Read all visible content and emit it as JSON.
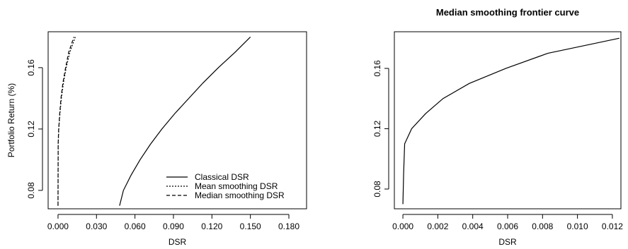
{
  "chart_data": [
    {
      "type": "line",
      "x_label": "DSR",
      "y_label": "Portfolio Return (%)",
      "legend": "bottomright",
      "xlim": [
        -0.0077,
        0.1938
      ],
      "ylim": [
        0.068,
        0.1834
      ],
      "xticks": [
        {
          "value": 0,
          "label": "0.000"
        },
        {
          "value": 0.03,
          "label": "0.030"
        },
        {
          "value": 0.06,
          "label": "0.060"
        },
        {
          "value": 0.09,
          "label": "0.090"
        },
        {
          "value": 0.12,
          "label": "0.120"
        },
        {
          "value": 0.15,
          "label": "0.150"
        },
        {
          "value": 0.18,
          "label": "0.180"
        }
      ],
      "yticks": [
        0.08,
        0.12,
        0.16
      ],
      "series": [
        {
          "name": "Classical DSR",
          "color": "#000000",
          "dash": "none",
          "x": [
            0.048,
            0.051,
            0.057,
            0.064,
            0.072,
            0.081,
            0.091,
            0.102,
            0.113,
            0.125,
            0.138,
            0.15
          ],
          "values": [
            0.07,
            0.08,
            0.09,
            0.1,
            0.11,
            0.12,
            0.13,
            0.14,
            0.15,
            0.16,
            0.17,
            0.18
          ]
        },
        {
          "name": "Mean smoothing DSR",
          "color": "#000000",
          "dash": "2,2",
          "x": [
            0,
            3e-05,
            6e-05,
            0.0001,
            0.00015,
            0.0006,
            0.0015,
            0.0026,
            0.0042,
            0.0064,
            0.0092,
            0.0135
          ],
          "values": [
            0.07,
            0.08,
            0.09,
            0.1,
            0.11,
            0.12,
            0.13,
            0.14,
            0.15,
            0.16,
            0.17,
            0.18
          ]
        },
        {
          "name": "Median smoothing DSR",
          "color": "#000000",
          "dash": "5,3",
          "x": [
            0,
            2e-05,
            4e-05,
            7e-05,
            0.0001,
            0.0005,
            0.0013,
            0.0023,
            0.0038,
            0.0059,
            0.0083,
            0.0124
          ],
          "values": [
            0.07,
            0.08,
            0.09,
            0.1,
            0.11,
            0.12,
            0.13,
            0.14,
            0.15,
            0.16,
            0.17,
            0.18
          ]
        }
      ]
    },
    {
      "type": "line",
      "title": "Median smoothing frontier curve",
      "x_label": "DSR",
      "xlim": [
        -0.00049,
        0.01249
      ],
      "ylim": [
        0.0669,
        0.1843
      ],
      "xticks": [
        {
          "value": 0,
          "label": "0.000"
        },
        {
          "value": 0.002,
          "label": "0.002"
        },
        {
          "value": 0.004,
          "label": "0.004"
        },
        {
          "value": 0.006,
          "label": "0.006"
        },
        {
          "value": 0.008,
          "label": "0.008"
        },
        {
          "value": 0.01,
          "label": "0.010"
        },
        {
          "value": 0.012,
          "label": "0.012"
        }
      ],
      "yticks": [
        0.08,
        0.12,
        0.16
      ],
      "series": [
        {
          "color": "#000000",
          "dash": "none",
          "x": [
            0,
            2e-05,
            4e-05,
            7e-05,
            0.0001,
            0.0005,
            0.0013,
            0.0023,
            0.0038,
            0.0059,
            0.0083,
            0.0124
          ],
          "values": [
            0.07,
            0.08,
            0.09,
            0.1,
            0.11,
            0.12,
            0.13,
            0.14,
            0.15,
            0.16,
            0.17,
            0.18
          ]
        }
      ]
    }
  ]
}
